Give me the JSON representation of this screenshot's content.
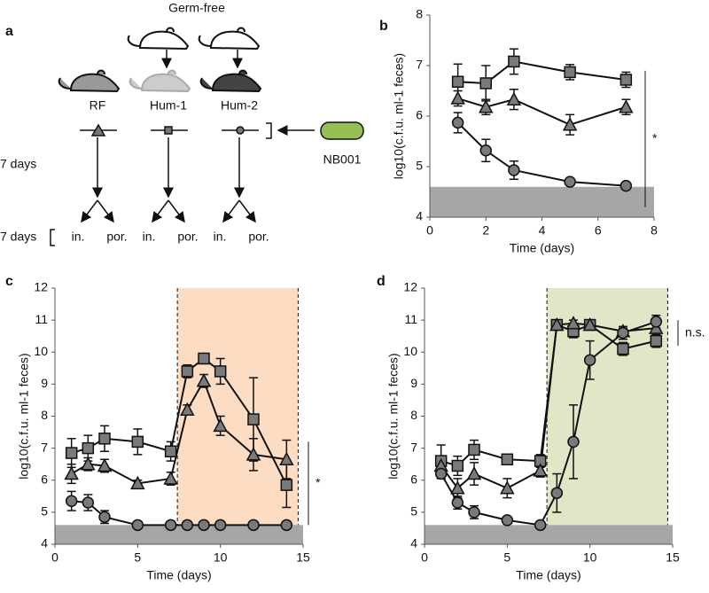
{
  "diagram": {
    "panel_label": "a",
    "title": "Germ-free",
    "groups": [
      "RF",
      "Hum-1",
      "Hum-2"
    ],
    "strain": "NB001",
    "duration_labels": [
      "7 days",
      "7 days"
    ],
    "routes": [
      [
        "in.",
        "por."
      ],
      [
        "in.",
        "por."
      ],
      [
        "in.",
        "por."
      ]
    ]
  },
  "chart_data": [
    {
      "type": "line",
      "panel_label": "b",
      "xlabel": "Time (days)",
      "ylabel": "log10(c.f.u. ml-1 feces)",
      "x": [
        1,
        2,
        3,
        5,
        7
      ],
      "xlim": [
        0,
        8
      ],
      "xticks": [
        0,
        2,
        4,
        6,
        8
      ],
      "ylim": [
        4,
        8
      ],
      "yticks": [
        4,
        5,
        6,
        7,
        8
      ],
      "detection_limit": 4.6,
      "annotation": "*",
      "annotation_span": [
        4.2,
        6.9
      ],
      "series": [
        {
          "marker": "square",
          "color": "#7a7a7a",
          "values": [
            6.68,
            6.65,
            7.08,
            6.87,
            6.72
          ],
          "errors": [
            0.35,
            0.35,
            0.25,
            0.15,
            0.15
          ]
        },
        {
          "marker": "triangle",
          "color": "#7a7a7a",
          "values": [
            6.35,
            6.18,
            6.33,
            5.83,
            6.18
          ],
          "errors": [
            0.15,
            0.15,
            0.2,
            0.2,
            0.15
          ]
        },
        {
          "marker": "circle",
          "color": "#7a7a7a",
          "values": [
            5.87,
            5.32,
            4.93,
            4.7,
            4.62
          ],
          "errors": [
            0.2,
            0.22,
            0.18,
            0.05,
            0.03
          ]
        }
      ]
    },
    {
      "type": "line",
      "panel_label": "c",
      "xlabel": "Time (days)",
      "ylabel": "log10(c.f.u. ml-1 feces)",
      "x": [
        1,
        2,
        3,
        5,
        7,
        8,
        9,
        10,
        12,
        14
      ],
      "xlim": [
        0,
        15
      ],
      "xticks": [
        0,
        5,
        10,
        15
      ],
      "ylim": [
        4,
        12
      ],
      "yticks": [
        4,
        5,
        6,
        7,
        8,
        9,
        10,
        11,
        12
      ],
      "detection_limit": 4.6,
      "shade": [
        7.4,
        14.7
      ],
      "shade_color": "#fcdcc3",
      "annotation": "*",
      "annotation_span": [
        4.6,
        7.2
      ],
      "series": [
        {
          "marker": "square",
          "color": "#7a7a7a",
          "values": [
            6.85,
            7.0,
            7.3,
            7.2,
            6.9,
            9.4,
            9.8,
            9.4,
            7.9,
            5.85
          ],
          "errors": [
            0.45,
            0.4,
            0.4,
            0.4,
            0.3,
            0.2,
            0.15,
            0.4,
            1.3,
            0.7
          ]
        },
        {
          "marker": "triangle",
          "color": "#7a7a7a",
          "values": [
            6.2,
            6.5,
            6.45,
            5.9,
            6.05,
            8.2,
            9.1,
            7.7,
            6.8,
            6.65
          ],
          "errors": [
            0.3,
            0.2,
            0.2,
            0.1,
            0.2,
            0.15,
            0.2,
            0.3,
            0.5,
            0.6
          ]
        },
        {
          "marker": "circle",
          "color": "#7a7a7a",
          "values": [
            5.35,
            5.3,
            4.85,
            4.6,
            4.6,
            4.6,
            4.6,
            4.6,
            4.6,
            4.6
          ],
          "errors": [
            0.3,
            0.25,
            0.2,
            0.05,
            0.03,
            0.03,
            0.03,
            0.03,
            0.03,
            0.03
          ]
        }
      ]
    },
    {
      "type": "line",
      "panel_label": "d",
      "xlabel": "Time (days)",
      "ylabel": "log10(c.f.u. ml-1 feces)",
      "x": [
        1,
        2,
        3,
        5,
        7,
        8,
        9,
        10,
        12,
        14
      ],
      "xlim": [
        0,
        15
      ],
      "xticks": [
        0,
        5,
        10,
        15
      ],
      "ylim": [
        4,
        12
      ],
      "yticks": [
        4,
        5,
        6,
        7,
        8,
        9,
        10,
        11,
        12
      ],
      "detection_limit": 4.6,
      "shade": [
        7.4,
        14.7
      ],
      "shade_color": "#e0e7c6",
      "annotation": "n.s.",
      "annotation_span": [
        10.2,
        11.0
      ],
      "series": [
        {
          "marker": "square",
          "color": "#7a7a7a",
          "values": [
            6.6,
            6.45,
            6.95,
            6.65,
            6.6,
            10.85,
            10.65,
            10.85,
            10.1,
            10.35
          ],
          "errors": [
            0.5,
            0.3,
            0.3,
            0.1,
            0.2,
            0.15,
            0.2,
            0.15,
            0.2,
            0.2
          ]
        },
        {
          "marker": "triangle",
          "color": "#7a7a7a",
          "values": [
            6.45,
            5.75,
            6.2,
            5.75,
            6.3,
            10.85,
            10.9,
            10.85,
            10.65,
            10.75
          ],
          "errors": [
            0.25,
            0.3,
            0.35,
            0.3,
            0.2,
            0.1,
            0.1,
            0.1,
            0.1,
            0.1
          ]
        },
        {
          "marker": "circle",
          "color": "#7a7a7a",
          "values": [
            6.2,
            5.3,
            5.0,
            4.75,
            4.6,
            5.6,
            7.2,
            9.75,
            10.6,
            10.95
          ],
          "errors": [
            0.15,
            0.2,
            0.2,
            0.1,
            0.03,
            0.6,
            1.15,
            0.6,
            0.2,
            0.2
          ]
        }
      ]
    }
  ]
}
